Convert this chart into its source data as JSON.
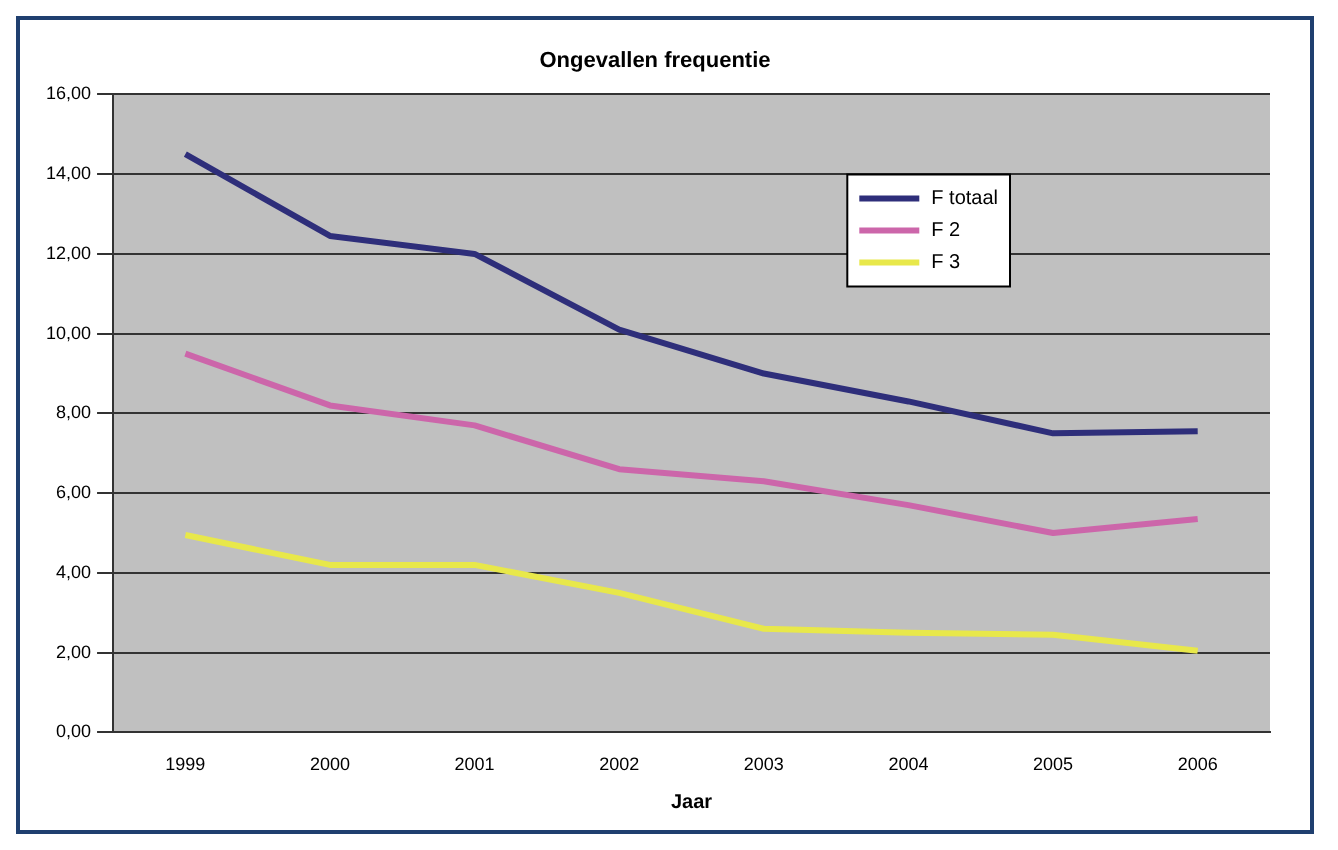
{
  "chart_data": {
    "type": "line",
    "title": "Ongevallen frequentie",
    "xlabel": "Jaar",
    "categories": [
      "1999",
      "2000",
      "2001",
      "2002",
      "2003",
      "2004",
      "2005",
      "2006"
    ],
    "series": [
      {
        "name": "F totaal",
        "color": "#2e2e7a",
        "values": [
          14.5,
          12.45,
          12.0,
          10.1,
          9.0,
          8.3,
          7.5,
          7.55
        ]
      },
      {
        "name": "F 2",
        "color": "#cc66aa",
        "values": [
          9.5,
          8.2,
          7.7,
          6.6,
          6.3,
          5.7,
          5.0,
          5.35
        ]
      },
      {
        "name": "F 3",
        "color": "#e8e84a",
        "values": [
          4.95,
          4.2,
          4.2,
          3.5,
          2.6,
          2.5,
          2.45,
          2.05
        ]
      }
    ],
    "ylim": [
      0,
      16
    ],
    "yticks": [
      {
        "value": 0,
        "label": "0,00"
      },
      {
        "value": 2,
        "label": "2,00"
      },
      {
        "value": 4,
        "label": "4,00"
      },
      {
        "value": 6,
        "label": "6,00"
      },
      {
        "value": 8,
        "label": "8,00"
      },
      {
        "value": 10,
        "label": "10,00"
      },
      {
        "value": 12,
        "label": "12,00"
      },
      {
        "value": 14,
        "label": "14,00"
      },
      {
        "value": 16,
        "label": "16,00"
      }
    ],
    "grid": "y",
    "legend": "top right",
    "marker": "none",
    "line_style": "solid"
  }
}
